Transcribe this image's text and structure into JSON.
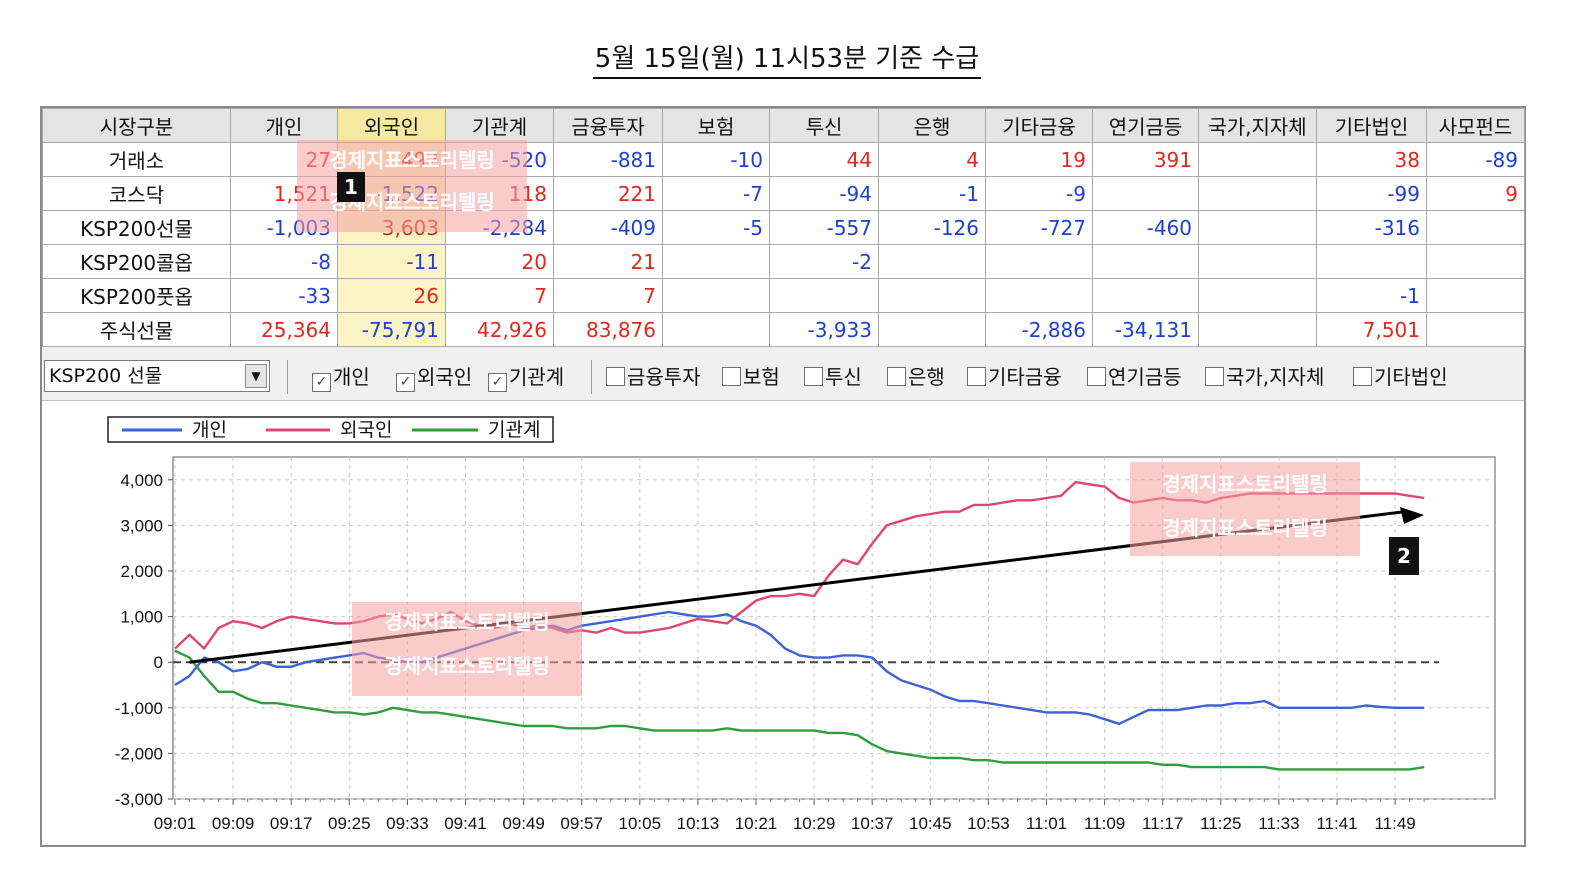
{
  "title": "5월 15일(월) 11시53분 기준 수급",
  "table": {
    "headers": [
      "시장구분",
      "개인",
      "외국인",
      "기관계",
      "금융투자",
      "보험",
      "투신",
      "은행",
      "기타금융",
      "연기금등",
      "국가,지자체",
      "기타법인",
      "사모펀드"
    ],
    "rows": [
      [
        "거래소",
        "27",
        "492",
        "-520",
        "-881",
        "-10",
        "44",
        "4",
        "19",
        "391",
        "",
        "38",
        "-89"
      ],
      [
        "코스닥",
        "1,521",
        "-1,522",
        "118",
        "221",
        "-7",
        "-94",
        "-1",
        "-9",
        "",
        "",
        "-99",
        "9"
      ],
      [
        "KSP200선물",
        "-1,003",
        "3,603",
        "-2,284",
        "-409",
        "-5",
        "-557",
        "-126",
        "-727",
        "-460",
        "",
        "-316",
        ""
      ],
      [
        "KSP200콜옵",
        "-8",
        "-11",
        "20",
        "21",
        "",
        "-2",
        "",
        "",
        "",
        "",
        "",
        ""
      ],
      [
        "KSP200풋옵",
        "-33",
        "26",
        "7",
        "7",
        "",
        "",
        "",
        "",
        "",
        "",
        "-1",
        ""
      ],
      [
        "주식선물",
        "25,364",
        "-75,791",
        "42,926",
        "83,876",
        "",
        "-3,933",
        "",
        "-2,886",
        "-34,131",
        "",
        "7,501",
        ""
      ]
    ]
  },
  "controls": {
    "select_value": "KSP200 선물",
    "checkboxes": [
      {
        "label": "개인",
        "checked": true
      },
      {
        "label": "외국인",
        "checked": true
      },
      {
        "label": "기관계",
        "checked": true
      },
      {
        "label": "금융투자",
        "checked": false
      },
      {
        "label": "보험",
        "checked": false
      },
      {
        "label": "투신",
        "checked": false
      },
      {
        "label": "은행",
        "checked": false
      },
      {
        "label": "기타금융",
        "checked": false
      },
      {
        "label": "연기금등",
        "checked": false
      },
      {
        "label": "국가,지자체",
        "checked": false
      },
      {
        "label": "기타법인",
        "checked": false
      }
    ]
  },
  "watermark_text": "경제지표스토리텔링",
  "badges": [
    "1",
    "2"
  ],
  "colors": {
    "positive": "#e0281c",
    "negative": "#1d3fd6",
    "individual": "#3e62d6",
    "foreign": "#e0456e",
    "institution": "#2f9d3e",
    "highlight": "#fbf4c6"
  },
  "chart_data": {
    "type": "line",
    "legend": [
      "개인",
      "외국인",
      "기관계"
    ],
    "legend_position": "top-left",
    "grid": true,
    "ylim": [
      -3000,
      4500
    ],
    "yticks": [
      "4,000",
      "3,000",
      "2,000",
      "1,000",
      "0",
      "-1,000",
      "-2,000",
      "-3,000"
    ],
    "ytick_values": [
      4000,
      3000,
      2000,
      1000,
      0,
      -1000,
      -2000,
      -3000
    ],
    "xticks": [
      "09:01",
      "09:09",
      "09:17",
      "09:25",
      "09:33",
      "09:41",
      "09:49",
      "09:57",
      "10:05",
      "10:13",
      "10:21",
      "10:29",
      "10:37",
      "10:45",
      "10:53",
      "11:01",
      "11:09",
      "11:17",
      "11:25",
      "11:33",
      "11:41",
      "11:49"
    ],
    "x_minutes": [
      0,
      2,
      4,
      6,
      8,
      10,
      12,
      14,
      16,
      18,
      20,
      22,
      24,
      26,
      28,
      30,
      32,
      34,
      36,
      38,
      40,
      42,
      44,
      46,
      48,
      50,
      52,
      54,
      56,
      58,
      60,
      62,
      64,
      66,
      68,
      70,
      72,
      74,
      76,
      78,
      80,
      82,
      84,
      86,
      88,
      90,
      92,
      94,
      96,
      98,
      100,
      102,
      104,
      106,
      108,
      110,
      112,
      114,
      116,
      118,
      120,
      122,
      124,
      126,
      128,
      130,
      132,
      134,
      136,
      138,
      140,
      142,
      144,
      146,
      148,
      150,
      152,
      154,
      156,
      158,
      160,
      162,
      164,
      166,
      168,
      170,
      172
    ],
    "series": [
      {
        "name": "개인",
        "values": [
          -500,
          -300,
          100,
          0,
          -200,
          -150,
          0,
          -100,
          -100,
          0,
          50,
          100,
          150,
          200,
          100,
          50,
          0,
          0,
          100,
          200,
          300,
          400,
          500,
          600,
          700,
          750,
          800,
          700,
          800,
          850,
          900,
          950,
          1000,
          1050,
          1100,
          1050,
          1000,
          1000,
          1050,
          900,
          800,
          600,
          300,
          150,
          100,
          100,
          150,
          150,
          100,
          -200,
          -400,
          -500,
          -600,
          -750,
          -850,
          -850,
          -900,
          -950,
          -1000,
          -1050,
          -1100,
          -1100,
          -1100,
          -1150,
          -1250,
          -1350,
          -1200,
          -1050,
          -1050,
          -1050,
          -1000,
          -950,
          -950,
          -900,
          -900,
          -850,
          -1000,
          -1000,
          -1000,
          -1000,
          -1000,
          -1000,
          -950,
          -980,
          -1000,
          -1000,
          -1000
        ]
      },
      {
        "name": "외국인",
        "values": [
          300,
          600,
          300,
          750,
          900,
          850,
          750,
          900,
          1000,
          950,
          900,
          850,
          850,
          900,
          1000,
          1050,
          950,
          850,
          950,
          1100,
          900,
          800,
          750,
          850,
          750,
          800,
          750,
          650,
          700,
          650,
          750,
          650,
          650,
          700,
          750,
          850,
          950,
          900,
          850,
          1100,
          1350,
          1450,
          1450,
          1500,
          1450,
          1900,
          2250,
          2150,
          2600,
          3000,
          3100,
          3200,
          3250,
          3300,
          3300,
          3450,
          3450,
          3500,
          3550,
          3550,
          3600,
          3650,
          3950,
          3900,
          3850,
          3600,
          3500,
          3550,
          3600,
          3550,
          3550,
          3500,
          3600,
          3650,
          3700,
          3700,
          3700,
          3700,
          3700,
          3700,
          3700,
          3700,
          3700,
          3700,
          3700,
          3650,
          3600
        ]
      },
      {
        "name": "기관계",
        "values": [
          250,
          100,
          -300,
          -650,
          -650,
          -800,
          -900,
          -900,
          -950,
          -1000,
          -1050,
          -1100,
          -1100,
          -1150,
          -1100,
          -1000,
          -1050,
          -1100,
          -1100,
          -1150,
          -1200,
          -1250,
          -1300,
          -1350,
          -1400,
          -1400,
          -1400,
          -1450,
          -1450,
          -1450,
          -1400,
          -1400,
          -1450,
          -1500,
          -1500,
          -1500,
          -1500,
          -1500,
          -1450,
          -1500,
          -1500,
          -1500,
          -1500,
          -1500,
          -1500,
          -1550,
          -1550,
          -1600,
          -1800,
          -1950,
          -2000,
          -2050,
          -2100,
          -2100,
          -2100,
          -2150,
          -2150,
          -2200,
          -2200,
          -2200,
          -2200,
          -2200,
          -2200,
          -2200,
          -2200,
          -2200,
          -2200,
          -2200,
          -2250,
          -2250,
          -2300,
          -2300,
          -2300,
          -2300,
          -2300,
          -2300,
          -2350,
          -2350,
          -2350,
          -2350,
          -2350,
          -2350,
          -2350,
          -2350,
          -2350,
          -2350,
          -2300
        ]
      }
    ]
  }
}
